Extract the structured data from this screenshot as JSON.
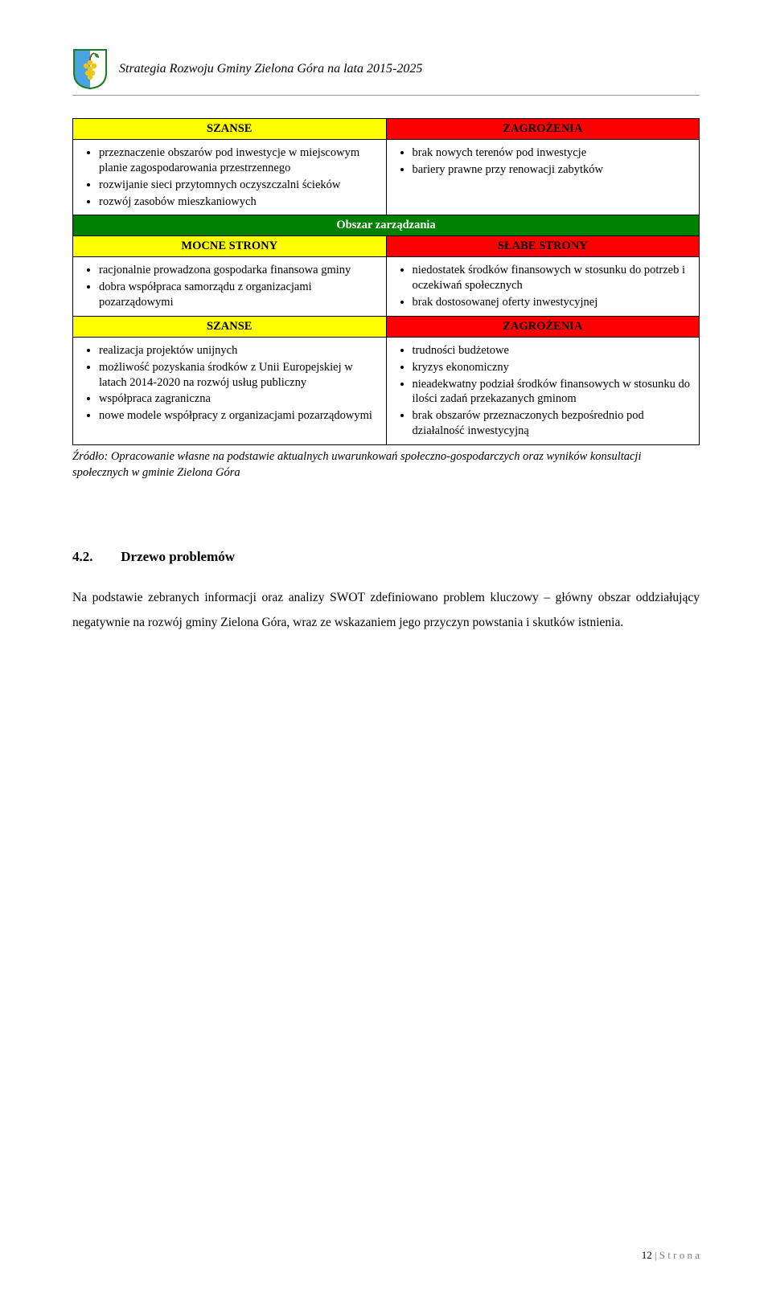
{
  "header": {
    "title": "Strategia Rozwoju Gminy Zielona Góra na lata 2015-2025"
  },
  "swot": {
    "row1": {
      "left_header": "SZANSE",
      "right_header": "ZAGROŻENIA",
      "left_items": [
        "przeznaczenie obszarów pod inwestycje w miejscowym planie zagospodarowania przestrzennego",
        "rozwijanie sieci przytomnych oczyszczalni ścieków",
        "rozwój zasobów mieszkaniowych"
      ],
      "right_items": [
        "brak nowych terenów pod inwestycje",
        "bariery prawne przy renowacji zabytków"
      ]
    },
    "section_header": "Obszar zarządzania",
    "row2": {
      "left_header": "MOCNE STRONY",
      "right_header": "SŁABE STRONY",
      "left_items": [
        "racjonalnie prowadzona gospodarka finansowa gminy",
        "dobra współpraca samorządu z organizacjami pozarządowymi"
      ],
      "right_items": [
        "niedostatek środków finansowych w stosunku do potrzeb i oczekiwań społecznych",
        "brak dostosowanej oferty inwestycyjnej"
      ]
    },
    "row3": {
      "left_header": "SZANSE",
      "right_header": "ZAGROŻENIA",
      "left_items": [
        "realizacja projektów unijnych",
        "możliwość pozyskania środków z Unii Europejskiej w latach 2014-2020 na rozwój usług publiczny",
        "współpraca zagraniczna",
        "nowe modele współpracy z organizacjami pozarządowymi"
      ],
      "right_items": [
        "trudności budżetowe",
        "kryzys ekonomiczny",
        "nieadekwatny podział środków finansowych w stosunku do ilości zadań przekazanych gminom",
        "brak obszarów przeznaczonych bezpośrednio pod działalność inwestycyjną"
      ]
    }
  },
  "source_note": "Źródło: Opracowanie własne na podstawie aktualnych uwarunkowań społeczno-gospodarczych oraz wyników konsultacji społecznych w gminie Zielona Góra",
  "section": {
    "number": "4.2.",
    "title": "Drzewo problemów",
    "paragraph": "Na podstawie zebranych informacji oraz analizy SWOT zdefiniowano problem kluczowy – główny obszar oddziałujący negatywnie na rozwój gminy Zielona Góra, wraz ze wskazaniem jego przyczyn powstania i skutków istnienia."
  },
  "footer": {
    "page_number": "12",
    "sep": " | ",
    "label": "S t r o n a"
  },
  "colors": {
    "yellow": "#ffff00",
    "red": "#ff0000",
    "green": "#008000",
    "green_text": "#ffffff",
    "footer_grey": "#7f7f7f"
  }
}
